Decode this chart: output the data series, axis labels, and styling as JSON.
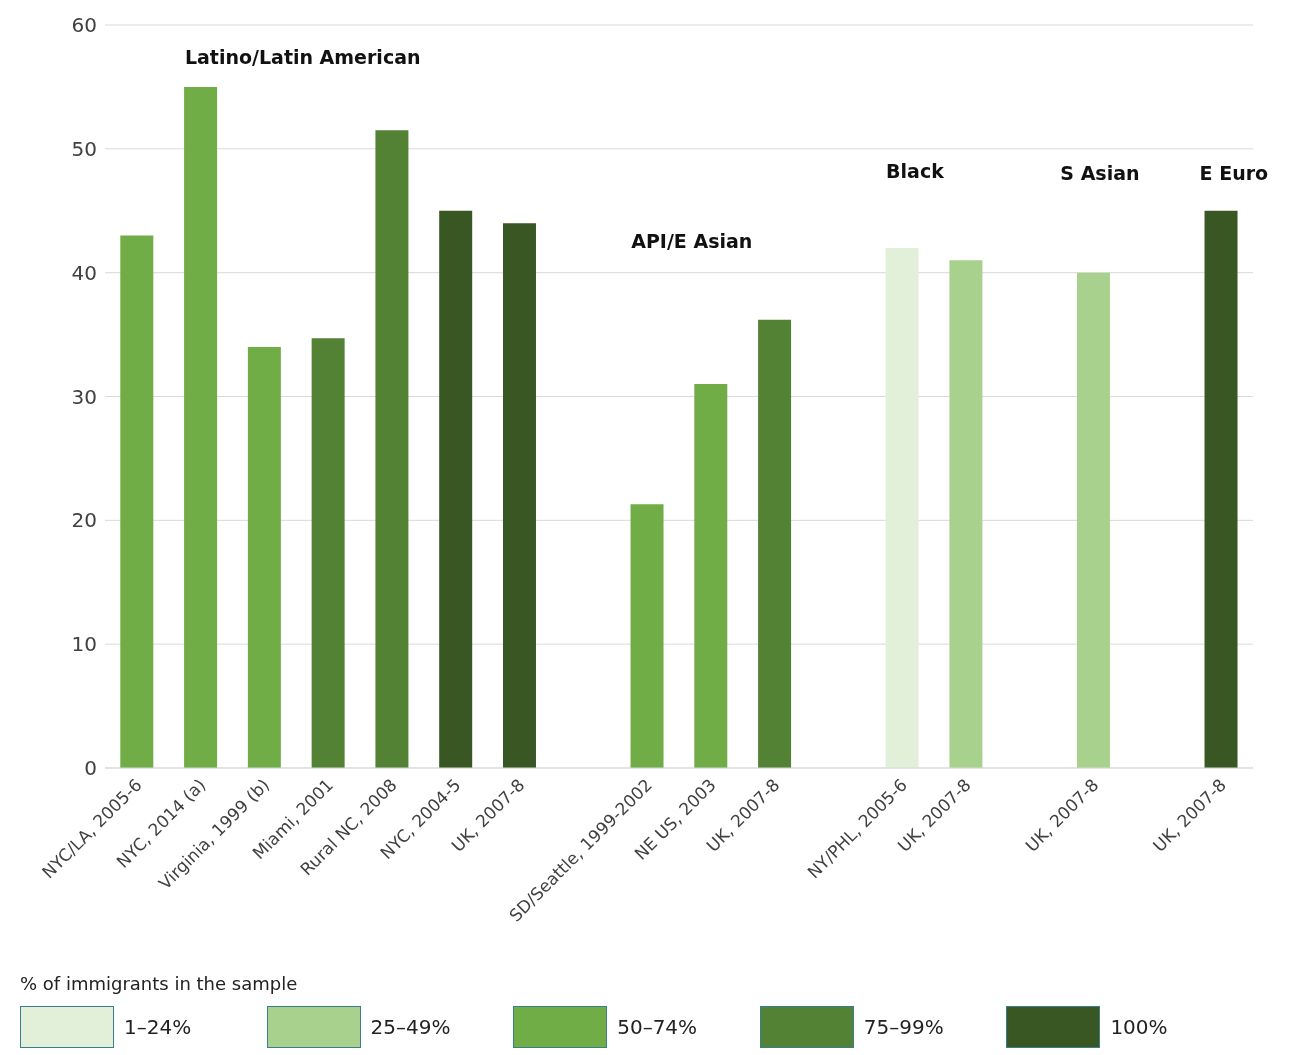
{
  "chart_data": {
    "type": "bar",
    "stacked": true,
    "categories": [
      "NYC/LA, 2005-6",
      "NYC, 2014 (a)",
      "Virginia, 1999 (b)",
      "Miami, 2001",
      "Rural NC, 2008",
      "NYC, 2004-5",
      "UK, 2007-8",
      null,
      "SD/Seattle, 1999-2002",
      "NE US, 2003",
      "UK, 2007-8",
      null,
      "NY/PHL, 2005-6",
      "UK, 2007-8",
      null,
      "UK, 2007-8",
      null,
      "UK, 2007-8"
    ],
    "series": [
      {
        "name": "1–24%",
        "color": "#e2efd9",
        "values": [
          null,
          null,
          null,
          null,
          null,
          null,
          null,
          null,
          null,
          null,
          null,
          null,
          42,
          null,
          null,
          null,
          null,
          null
        ]
      },
      {
        "name": "25–49%",
        "color": "#a9d18e",
        "values": [
          null,
          null,
          null,
          null,
          null,
          null,
          null,
          null,
          null,
          null,
          null,
          null,
          null,
          41,
          null,
          40,
          null,
          null
        ]
      },
      {
        "name": "50–74%",
        "color": "#70ad47",
        "values": [
          43,
          55,
          34,
          null,
          null,
          null,
          null,
          null,
          21.3,
          31,
          null,
          null,
          null,
          null,
          null,
          null,
          null,
          null
        ]
      },
      {
        "name": "75–99%",
        "color": "#548235",
        "values": [
          null,
          null,
          null,
          34.7,
          51.5,
          null,
          null,
          null,
          null,
          null,
          36.2,
          null,
          null,
          null,
          null,
          null,
          null,
          null
        ]
      },
      {
        "name": "100%",
        "color": "#385723",
        "values": [
          null,
          null,
          null,
          null,
          null,
          45,
          44,
          null,
          null,
          null,
          null,
          null,
          null,
          null,
          null,
          null,
          null,
          45
        ]
      }
    ],
    "ylim": [
      0,
      60
    ],
    "yticks": [
      0,
      10,
      20,
      30,
      40,
      50,
      60
    ],
    "grid": "y",
    "legend": "bottom",
    "legend_title": "% of immigrants in the sample",
    "annotations": [
      "Latino/Latin American",
      "API/E Asian",
      "Black",
      "S Asian",
      "E Euro"
    ]
  }
}
